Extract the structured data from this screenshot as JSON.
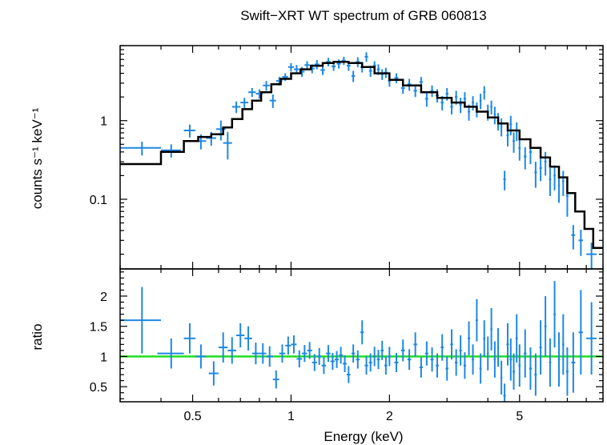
{
  "chart_data": [
    {
      "type": "scatter",
      "panel": "spectrum",
      "title": "Swift−XRT WT spectrum of GRB 060813",
      "xlabel": "Energy (keV)",
      "ylabel": "counts s⁻¹ keV⁻¹",
      "x_scale": "log",
      "y_scale": "log",
      "xlim": [
        0.3,
        9.0
      ],
      "ylim": [
        0.013,
        9.0
      ],
      "x_ticks": [
        0.5,
        1,
        2,
        5
      ],
      "y_ticks": [
        {
          "value": 1,
          "label": "1"
        },
        {
          "value": 0.1,
          "label": "0.1"
        }
      ],
      "colors": {
        "data": "#1e88e5",
        "model": "#000000",
        "axes": "#000000"
      },
      "series": [
        {
          "kind": "data",
          "points": [
            [
              0.35,
              0.45,
              0.05,
              0.09
            ],
            [
              0.43,
              0.42,
              0.03,
              0.08
            ],
            [
              0.49,
              0.75,
              0.02,
              0.14
            ],
            [
              0.53,
              0.55,
              0.02,
              0.12
            ],
            [
              0.57,
              0.6,
              0.02,
              0.12
            ],
            [
              0.61,
              0.78,
              0.02,
              0.22
            ],
            [
              0.64,
              0.52,
              0.02,
              0.2
            ],
            [
              0.68,
              1.5,
              0.02,
              0.25
            ],
            [
              0.72,
              1.7,
              0.02,
              0.25
            ],
            [
              0.76,
              2.3,
              0.02,
              0.3
            ],
            [
              0.8,
              2.2,
              0.02,
              0.3
            ],
            [
              0.84,
              2.8,
              0.02,
              0.4
            ],
            [
              0.88,
              1.8,
              0.02,
              0.35
            ],
            [
              0.92,
              3.2,
              0.02,
              0.4
            ],
            [
              0.96,
              3.6,
              0.02,
              0.4
            ],
            [
              1.0,
              4.8,
              0.02,
              0.6
            ],
            [
              1.04,
              4.5,
              0.02,
              0.6
            ],
            [
              1.08,
              4.2,
              0.02,
              0.6
            ],
            [
              1.12,
              5.1,
              0.02,
              0.6
            ],
            [
              1.16,
              4.6,
              0.02,
              0.6
            ],
            [
              1.2,
              5.2,
              0.02,
              0.7
            ],
            [
              1.25,
              4.4,
              0.02,
              0.6
            ],
            [
              1.3,
              5.6,
              0.02,
              0.7
            ],
            [
              1.35,
              4.9,
              0.02,
              0.6
            ],
            [
              1.4,
              5.3,
              0.02,
              0.7
            ],
            [
              1.45,
              5.8,
              0.02,
              0.7
            ],
            [
              1.5,
              5.0,
              0.02,
              0.7
            ],
            [
              1.55,
              3.7,
              0.02,
              0.6
            ],
            [
              1.6,
              5.6,
              0.02,
              0.8
            ],
            [
              1.65,
              4.8,
              0.02,
              0.7
            ],
            [
              1.7,
              6.5,
              0.02,
              0.9
            ],
            [
              1.75,
              4.3,
              0.02,
              0.7
            ],
            [
              1.8,
              5.0,
              0.02,
              0.7
            ],
            [
              1.85,
              4.5,
              0.02,
              0.7
            ],
            [
              1.9,
              3.9,
              0.02,
              0.6
            ],
            [
              1.95,
              4.1,
              0.02,
              0.6
            ],
            [
              2.0,
              3.2,
              0.02,
              0.5
            ],
            [
              2.1,
              3.5,
              0.03,
              0.5
            ],
            [
              2.2,
              2.6,
              0.03,
              0.4
            ],
            [
              2.3,
              2.9,
              0.03,
              0.5
            ],
            [
              2.4,
              2.4,
              0.03,
              0.4
            ],
            [
              2.5,
              3.1,
              0.03,
              0.5
            ],
            [
              2.6,
              1.9,
              0.03,
              0.4
            ],
            [
              2.7,
              2.4,
              0.03,
              0.4
            ],
            [
              2.8,
              2.1,
              0.03,
              0.4
            ],
            [
              2.9,
              1.7,
              0.03,
              0.35
            ],
            [
              3.0,
              2.2,
              0.03,
              0.4
            ],
            [
              3.1,
              1.5,
              0.03,
              0.3
            ],
            [
              3.2,
              2.0,
              0.03,
              0.4
            ],
            [
              3.3,
              1.6,
              0.03,
              0.35
            ],
            [
              3.4,
              1.9,
              0.03,
              0.4
            ],
            [
              3.5,
              1.3,
              0.03,
              0.3
            ],
            [
              3.6,
              1.7,
              0.03,
              0.35
            ],
            [
              3.7,
              1.4,
              0.03,
              0.3
            ],
            [
              3.8,
              1.8,
              0.03,
              0.4
            ],
            [
              3.9,
              2.3,
              0.03,
              0.45
            ],
            [
              4.0,
              1.3,
              0.03,
              0.3
            ],
            [
              4.1,
              1.5,
              0.03,
              0.3
            ],
            [
              4.2,
              1.2,
              0.03,
              0.3
            ],
            [
              4.3,
              1.0,
              0.03,
              0.25
            ],
            [
              4.4,
              0.85,
              0.03,
              0.22
            ],
            [
              4.5,
              0.18,
              0.04,
              0.05
            ],
            [
              4.6,
              0.65,
              0.04,
              0.18
            ],
            [
              4.7,
              0.9,
              0.04,
              0.25
            ],
            [
              4.8,
              0.55,
              0.04,
              0.16
            ],
            [
              4.9,
              0.75,
              0.04,
              0.2
            ],
            [
              5.0,
              0.45,
              0.04,
              0.14
            ],
            [
              5.2,
              0.35,
              0.05,
              0.11
            ],
            [
              5.4,
              0.4,
              0.05,
              0.12
            ],
            [
              5.6,
              0.22,
              0.05,
              0.08
            ],
            [
              5.8,
              0.25,
              0.05,
              0.08
            ],
            [
              6.0,
              0.3,
              0.05,
              0.1
            ],
            [
              6.2,
              0.18,
              0.05,
              0.07
            ],
            [
              6.4,
              0.2,
              0.05,
              0.07
            ],
            [
              6.6,
              0.15,
              0.05,
              0.06
            ],
            [
              6.8,
              0.17,
              0.05,
              0.06
            ],
            [
              7.0,
              0.11,
              0.06,
              0.05
            ],
            [
              7.3,
              0.035,
              0.1,
              0.012
            ],
            [
              7.7,
              0.03,
              0.12,
              0.011
            ],
            [
              8.3,
              0.02,
              0.3,
              0.008
            ]
          ]
        },
        {
          "kind": "model",
          "steps": [
            [
              0.3,
              0.28
            ],
            [
              0.4,
              0.4
            ],
            [
              0.47,
              0.55
            ],
            [
              0.52,
              0.62
            ],
            [
              0.57,
              0.67
            ],
            [
              0.62,
              0.82
            ],
            [
              0.66,
              1.05
            ],
            [
              0.71,
              1.4
            ],
            [
              0.76,
              1.8
            ],
            [
              0.81,
              2.3
            ],
            [
              0.87,
              2.9
            ],
            [
              0.93,
              3.4
            ],
            [
              1.0,
              4.0
            ],
            [
              1.07,
              4.5
            ],
            [
              1.15,
              5.0
            ],
            [
              1.25,
              5.4
            ],
            [
              1.35,
              5.6
            ],
            [
              1.5,
              5.4
            ],
            [
              1.65,
              4.8
            ],
            [
              1.8,
              4.0
            ],
            [
              2.0,
              3.3
            ],
            [
              2.2,
              2.8
            ],
            [
              2.5,
              2.3
            ],
            [
              2.8,
              1.95
            ],
            [
              3.1,
              1.7
            ],
            [
              3.4,
              1.5
            ],
            [
              3.7,
              1.3
            ],
            [
              4.0,
              1.1
            ],
            [
              4.3,
              0.92
            ],
            [
              4.6,
              0.75
            ],
            [
              5.0,
              0.58
            ],
            [
              5.4,
              0.45
            ],
            [
              5.8,
              0.34
            ],
            [
              6.2,
              0.26
            ],
            [
              6.6,
              0.19
            ],
            [
              7.0,
              0.12
            ],
            [
              7.4,
              0.07
            ],
            [
              7.9,
              0.042
            ],
            [
              8.4,
              0.024
            ],
            [
              9.0,
              0.024
            ]
          ]
        }
      ]
    },
    {
      "type": "scatter",
      "panel": "residuals",
      "xlabel": "Energy (keV)",
      "ylabel": "ratio",
      "x_scale": "log",
      "y_scale": "linear",
      "xlim": [
        0.3,
        9.0
      ],
      "ylim": [
        0.25,
        2.45
      ],
      "x_ticks": [
        0.5,
        1,
        2,
        5
      ],
      "y_ticks": [
        {
          "value": 0.5,
          "label": "0.5"
        },
        {
          "value": 1,
          "label": "1"
        },
        {
          "value": 1.5,
          "label": "1.5"
        },
        {
          "value": 2,
          "label": "2"
        }
      ],
      "reference_line": {
        "y": 1,
        "color": "#22dd22"
      },
      "colors": {
        "data": "#1e88e5",
        "axes": "#000000"
      },
      "points": [
        [
          0.35,
          1.6,
          0.05,
          0.55
        ],
        [
          0.43,
          1.05,
          0.04,
          0.25
        ],
        [
          0.49,
          1.3,
          0.02,
          0.25
        ],
        [
          0.53,
          1.0,
          0.02,
          0.2
        ],
        [
          0.58,
          0.72,
          0.02,
          0.2
        ],
        [
          0.62,
          1.15,
          0.02,
          0.25
        ],
        [
          0.66,
          1.1,
          0.02,
          0.22
        ],
        [
          0.7,
          1.35,
          0.02,
          0.2
        ],
        [
          0.74,
          1.3,
          0.02,
          0.2
        ],
        [
          0.78,
          1.05,
          0.02,
          0.18
        ],
        [
          0.82,
          1.05,
          0.02,
          0.17
        ],
        [
          0.86,
          1.0,
          0.02,
          0.17
        ],
        [
          0.9,
          0.62,
          0.02,
          0.15
        ],
        [
          0.94,
          1.05,
          0.02,
          0.15
        ],
        [
          0.98,
          1.18,
          0.02,
          0.15
        ],
        [
          1.02,
          1.2,
          0.02,
          0.15
        ],
        [
          1.06,
          0.96,
          0.02,
          0.14
        ],
        [
          1.1,
          1.05,
          0.02,
          0.14
        ],
        [
          1.14,
          1.1,
          0.02,
          0.14
        ],
        [
          1.18,
          0.9,
          0.02,
          0.14
        ],
        [
          1.22,
          1.0,
          0.02,
          0.14
        ],
        [
          1.26,
          0.85,
          0.02,
          0.14
        ],
        [
          1.3,
          1.05,
          0.02,
          0.14
        ],
        [
          1.34,
          0.92,
          0.02,
          0.14
        ],
        [
          1.38,
          0.95,
          0.02,
          0.14
        ],
        [
          1.42,
          1.02,
          0.02,
          0.14
        ],
        [
          1.46,
          0.88,
          0.02,
          0.14
        ],
        [
          1.5,
          0.7,
          0.02,
          0.14
        ],
        [
          1.55,
          1.05,
          0.02,
          0.15
        ],
        [
          1.6,
          0.95,
          0.02,
          0.15
        ],
        [
          1.65,
          1.4,
          0.02,
          0.2
        ],
        [
          1.7,
          0.85,
          0.02,
          0.15
        ],
        [
          1.75,
          0.9,
          0.02,
          0.15
        ],
        [
          1.8,
          1.0,
          0.02,
          0.16
        ],
        [
          1.85,
          0.95,
          0.02,
          0.16
        ],
        [
          1.9,
          1.1,
          0.02,
          0.16
        ],
        [
          1.95,
          0.85,
          0.02,
          0.15
        ],
        [
          2.0,
          1.0,
          0.02,
          0.16
        ],
        [
          2.1,
          0.9,
          0.03,
          0.16
        ],
        [
          2.2,
          1.1,
          0.03,
          0.18
        ],
        [
          2.3,
          0.95,
          0.03,
          0.17
        ],
        [
          2.4,
          1.2,
          0.03,
          0.2
        ],
        [
          2.5,
          0.82,
          0.03,
          0.17
        ],
        [
          2.6,
          1.05,
          0.03,
          0.2
        ],
        [
          2.7,
          0.95,
          0.03,
          0.2
        ],
        [
          2.8,
          0.85,
          0.03,
          0.2
        ],
        [
          2.9,
          1.15,
          0.03,
          0.22
        ],
        [
          3.0,
          0.8,
          0.03,
          0.2
        ],
        [
          3.1,
          1.2,
          0.03,
          0.25
        ],
        [
          3.2,
          0.9,
          0.03,
          0.22
        ],
        [
          3.3,
          1.1,
          0.03,
          0.25
        ],
        [
          3.4,
          0.85,
          0.03,
          0.22
        ],
        [
          3.5,
          1.3,
          0.03,
          0.28
        ],
        [
          3.6,
          0.95,
          0.03,
          0.25
        ],
        [
          3.7,
          1.6,
          0.03,
          0.35
        ],
        [
          3.8,
          0.8,
          0.03,
          0.25
        ],
        [
          3.9,
          1.3,
          0.03,
          0.3
        ],
        [
          4.0,
          1.05,
          0.03,
          0.28
        ],
        [
          4.1,
          1.45,
          0.03,
          0.35
        ],
        [
          4.2,
          0.95,
          0.03,
          0.3
        ],
        [
          4.3,
          1.15,
          0.03,
          0.32
        ],
        [
          4.4,
          0.65,
          0.03,
          0.28
        ],
        [
          4.5,
          0.35,
          0.04,
          0.2
        ],
        [
          4.6,
          1.2,
          0.04,
          0.35
        ],
        [
          4.7,
          0.95,
          0.04,
          0.35
        ],
        [
          4.8,
          0.75,
          0.04,
          0.3
        ],
        [
          4.9,
          1.3,
          0.04,
          0.4
        ],
        [
          5.0,
          0.85,
          0.04,
          0.35
        ],
        [
          5.2,
          1.05,
          0.05,
          0.4
        ],
        [
          5.4,
          0.8,
          0.05,
          0.35
        ],
        [
          5.6,
          0.7,
          0.05,
          0.35
        ],
        [
          5.8,
          1.15,
          0.05,
          0.45
        ],
        [
          6.0,
          1.5,
          0.05,
          0.5
        ],
        [
          6.2,
          0.9,
          0.05,
          0.4
        ],
        [
          6.4,
          1.7,
          0.05,
          0.55
        ],
        [
          6.6,
          0.95,
          0.05,
          0.45
        ],
        [
          6.8,
          1.2,
          0.05,
          0.5
        ],
        [
          7.0,
          0.75,
          0.06,
          0.4
        ],
        [
          7.3,
          0.9,
          0.1,
          0.5
        ],
        [
          7.7,
          1.4,
          0.12,
          0.7
        ],
        [
          8.3,
          1.3,
          0.3,
          0.6
        ]
      ]
    }
  ]
}
